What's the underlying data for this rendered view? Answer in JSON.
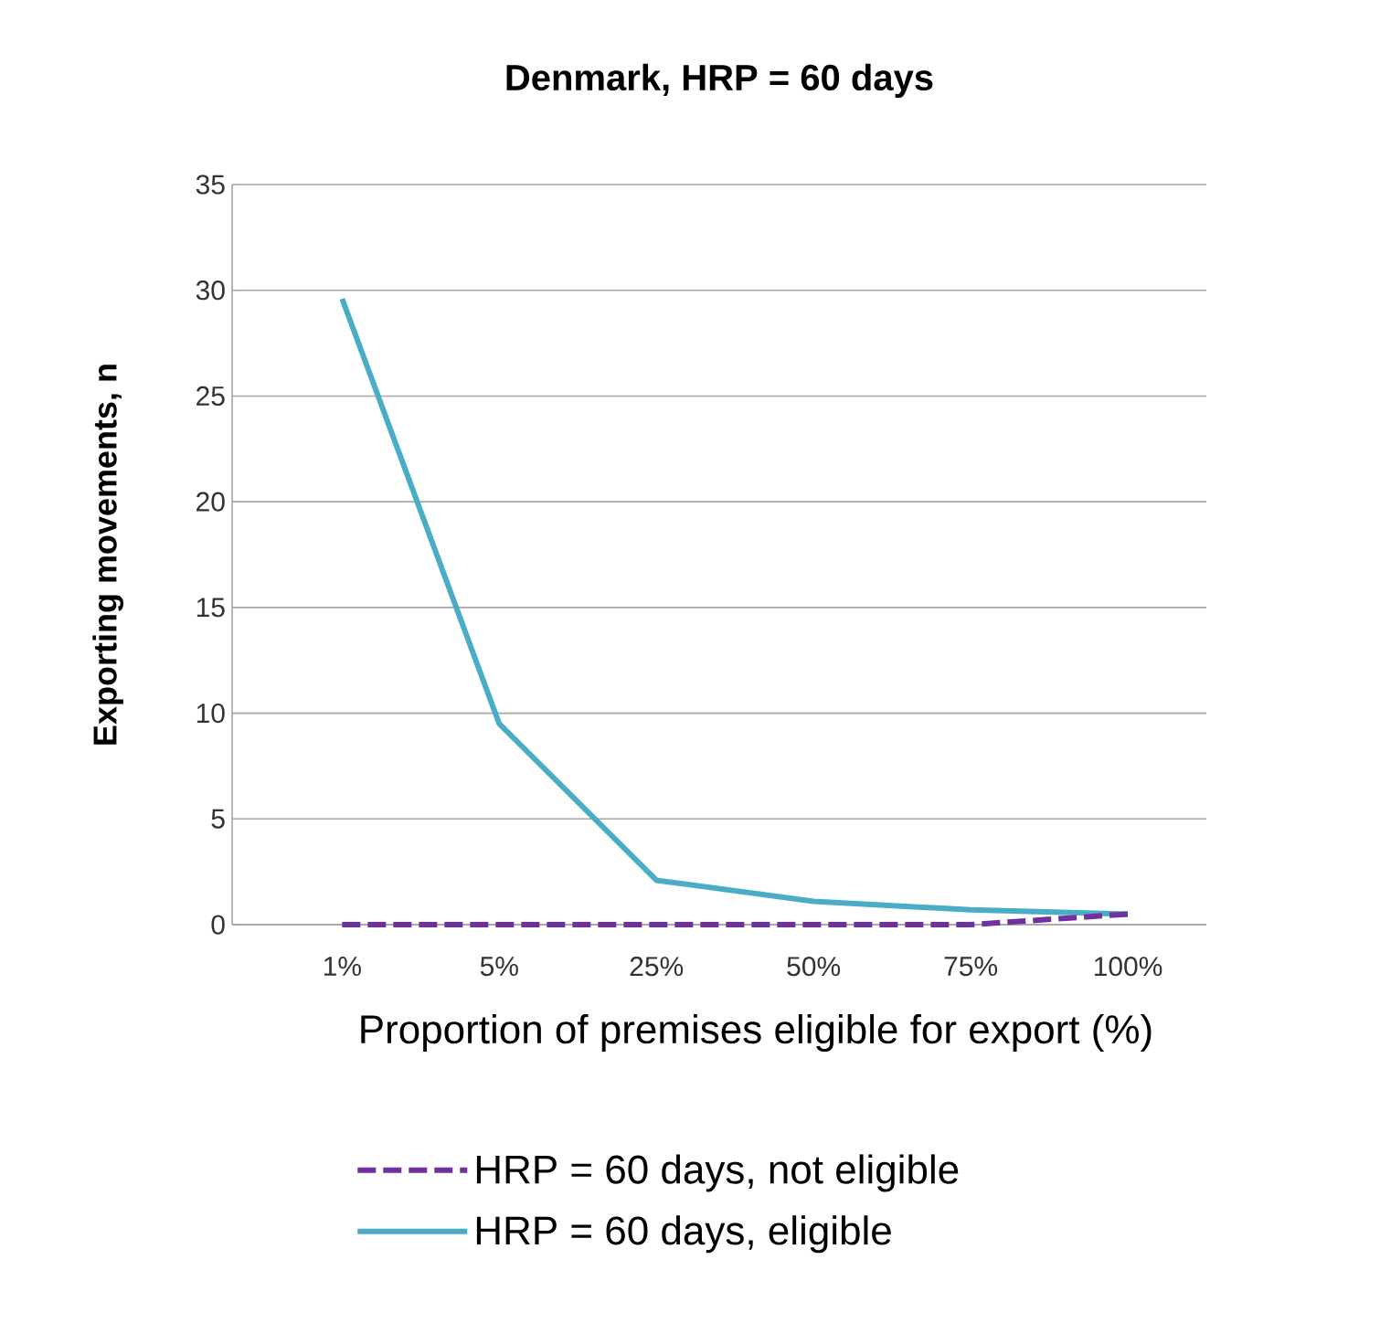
{
  "chart_data": {
    "type": "line",
    "title": "Denmark, HRP = 60 days",
    "xlabel": "Proportion of premises eligible for export (%)",
    "ylabel": "Exporting movements, n",
    "categories": [
      "1%",
      "5%",
      "25%",
      "50%",
      "75%",
      "100%"
    ],
    "series": [
      {
        "name": "HRP = 60 days, not eligible",
        "color": "#7030a0",
        "line_style": "dashed",
        "values": [
          0,
          0,
          0,
          0,
          0,
          0.5
        ]
      },
      {
        "name": "HRP = 60 days, eligible",
        "color": "#4bacc6",
        "line_style": "solid",
        "values": [
          29.6,
          9.5,
          2.1,
          1.1,
          0.7,
          0.5
        ]
      }
    ],
    "ylim": [
      0,
      35
    ],
    "yticks": [
      0,
      5,
      10,
      15,
      20,
      25,
      30,
      35
    ],
    "grid": "y",
    "legend": "bottom",
    "marker": "none"
  }
}
